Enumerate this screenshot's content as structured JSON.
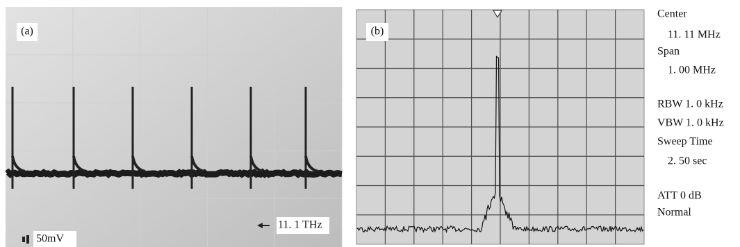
{
  "panel_a": {
    "label": "(a)",
    "scale": "50mV",
    "marker": "11. 1 THz"
  },
  "panel_b": {
    "label": "(b)"
  },
  "settings": [
    "Center",
    "11. 11 MHz",
    "Span",
    "1. 00 MHz",
    "RBW 1. 0 kHz",
    "VBW 1. 0 kHz",
    "Sweep Time",
    "2. 50 sec",
    "ATT 0 dB",
    "Normal"
  ]
}
